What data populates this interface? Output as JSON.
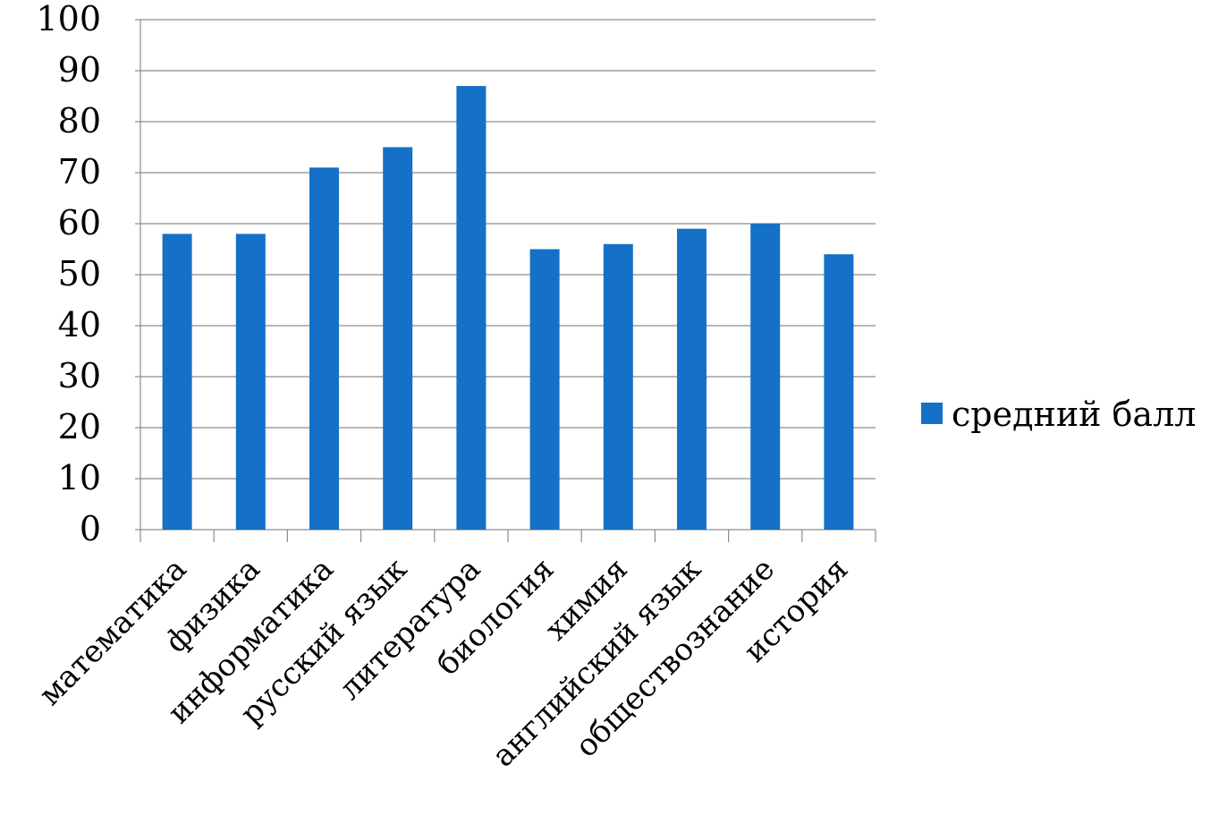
{
  "chart_data": {
    "type": "bar",
    "categories": [
      "математика",
      "физика",
      "информатика",
      "русский язык",
      "литература",
      "биология",
      "химия",
      "английский язык",
      "обществознание",
      "история"
    ],
    "series": [
      {
        "name": "средний балл",
        "values": [
          58,
          58,
          71,
          75,
          87,
          55,
          56,
          59,
          60,
          54
        ],
        "color": "#1570C8"
      }
    ],
    "yticks": [
      "0",
      "10",
      "20",
      "30",
      "40",
      "50",
      "60",
      "70",
      "80",
      "90",
      "100"
    ],
    "ylim": [
      0,
      100
    ],
    "grid": true,
    "legend_position": "right",
    "title": "",
    "xlabel": "",
    "ylabel": ""
  }
}
